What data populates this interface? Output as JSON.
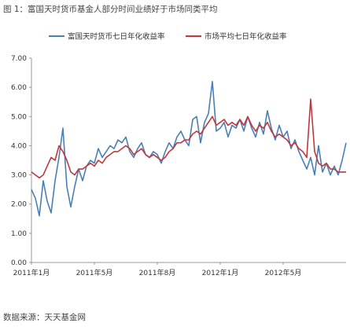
{
  "title": "图 1：富国天时货币基金人部分时间业绩好于市场同类平均",
  "source": "数据来源：天天基金网",
  "colors": {
    "series_a": "#4a7fb5",
    "series_b": "#c0373c",
    "axis": "#999999"
  },
  "chart_data": {
    "type": "line",
    "title": "图 1：富国天时货币基金人部分时间业绩好于市场同类平均",
    "xlabel": "",
    "ylabel": "",
    "ylim": [
      0,
      7
    ],
    "yticks": [
      "0.00",
      "1.00",
      "2.00",
      "3.00",
      "4.00",
      "5.00",
      "6.00",
      "7.00"
    ],
    "xlim": [
      0,
      80
    ],
    "xticks": [
      {
        "x": 0,
        "label": "2011年1月"
      },
      {
        "x": 16,
        "label": "2011年5月"
      },
      {
        "x": 32,
        "label": "2011年8月"
      },
      {
        "x": 48,
        "label": "2012年1月"
      },
      {
        "x": 64,
        "label": "2012年5月"
      }
    ],
    "grid": false,
    "legend": "top",
    "series": [
      {
        "name": "富国天时货币七日年化收益率",
        "color": "#4a7fb5",
        "points": [
          [
            0,
            2.5
          ],
          [
            1,
            2.2
          ],
          [
            2,
            1.6
          ],
          [
            3,
            2.8
          ],
          [
            4,
            2.1
          ],
          [
            5,
            1.7
          ],
          [
            6,
            2.8
          ],
          [
            7,
            3.6
          ],
          [
            8,
            4.6
          ],
          [
            9,
            2.6
          ],
          [
            10,
            1.9
          ],
          [
            11,
            2.6
          ],
          [
            12,
            3.2
          ],
          [
            13,
            2.8
          ],
          [
            14,
            3.3
          ],
          [
            15,
            3.5
          ],
          [
            16,
            3.4
          ],
          [
            17,
            3.9
          ],
          [
            18,
            3.6
          ],
          [
            19,
            3.8
          ],
          [
            20,
            4.0
          ],
          [
            21,
            3.9
          ],
          [
            22,
            4.2
          ],
          [
            23,
            4.1
          ],
          [
            24,
            4.3
          ],
          [
            25,
            3.8
          ],
          [
            26,
            3.6
          ],
          [
            27,
            3.9
          ],
          [
            28,
            4.1
          ],
          [
            29,
            3.7
          ],
          [
            30,
            3.6
          ],
          [
            31,
            3.8
          ],
          [
            32,
            3.7
          ],
          [
            33,
            3.4
          ],
          [
            34,
            3.8
          ],
          [
            35,
            4.1
          ],
          [
            36,
            3.9
          ],
          [
            37,
            4.3
          ],
          [
            38,
            4.5
          ],
          [
            39,
            4.2
          ],
          [
            40,
            4.0
          ],
          [
            41,
            4.9
          ],
          [
            42,
            5.0
          ],
          [
            43,
            4.1
          ],
          [
            44,
            4.8
          ],
          [
            45,
            5.1
          ],
          [
            46,
            6.2
          ],
          [
            47,
            4.5
          ],
          [
            48,
            4.6
          ],
          [
            49,
            4.8
          ],
          [
            50,
            4.3
          ],
          [
            51,
            4.7
          ],
          [
            52,
            4.6
          ],
          [
            53,
            4.9
          ],
          [
            54,
            4.5
          ],
          [
            55,
            5.0
          ],
          [
            56,
            4.6
          ],
          [
            57,
            4.3
          ],
          [
            58,
            4.8
          ],
          [
            59,
            4.4
          ],
          [
            60,
            5.2
          ],
          [
            61,
            4.6
          ],
          [
            62,
            4.2
          ],
          [
            63,
            4.7
          ],
          [
            64,
            4.3
          ],
          [
            65,
            4.5
          ],
          [
            66,
            3.9
          ],
          [
            67,
            4.2
          ],
          [
            68,
            3.8
          ],
          [
            69,
            3.5
          ],
          [
            70,
            3.2
          ],
          [
            71,
            3.6
          ],
          [
            72,
            3.0
          ],
          [
            73,
            4.0
          ],
          [
            74,
            3.1
          ],
          [
            75,
            3.4
          ],
          [
            76,
            3.0
          ],
          [
            77,
            3.3
          ],
          [
            78,
            3.0
          ],
          [
            79,
            3.5
          ],
          [
            80,
            4.1
          ]
        ]
      },
      {
        "name": "市场平均七日年化收益率",
        "color": "#c0373c",
        "points": [
          [
            0,
            3.1
          ],
          [
            1,
            3.0
          ],
          [
            2,
            2.9
          ],
          [
            3,
            3.0
          ],
          [
            4,
            3.3
          ],
          [
            5,
            3.6
          ],
          [
            6,
            3.5
          ],
          [
            7,
            4.0
          ],
          [
            8,
            3.8
          ],
          [
            9,
            3.5
          ],
          [
            10,
            3.1
          ],
          [
            11,
            3.0
          ],
          [
            12,
            3.2
          ],
          [
            13,
            3.2
          ],
          [
            14,
            3.3
          ],
          [
            15,
            3.4
          ],
          [
            16,
            3.3
          ],
          [
            17,
            3.5
          ],
          [
            18,
            3.4
          ],
          [
            19,
            3.6
          ],
          [
            20,
            3.7
          ],
          [
            21,
            3.8
          ],
          [
            22,
            3.8
          ],
          [
            23,
            3.9
          ],
          [
            24,
            4.0
          ],
          [
            25,
            3.9
          ],
          [
            26,
            3.7
          ],
          [
            27,
            3.8
          ],
          [
            28,
            3.9
          ],
          [
            29,
            3.7
          ],
          [
            30,
            3.6
          ],
          [
            31,
            3.7
          ],
          [
            32,
            3.6
          ],
          [
            33,
            3.5
          ],
          [
            34,
            3.6
          ],
          [
            35,
            3.8
          ],
          [
            36,
            3.9
          ],
          [
            37,
            4.1
          ],
          [
            38,
            4.1
          ],
          [
            39,
            4.2
          ],
          [
            40,
            4.2
          ],
          [
            41,
            4.4
          ],
          [
            42,
            4.5
          ],
          [
            43,
            4.4
          ],
          [
            44,
            4.6
          ],
          [
            45,
            4.8
          ],
          [
            46,
            5.0
          ],
          [
            47,
            4.7
          ],
          [
            48,
            4.8
          ],
          [
            49,
            4.9
          ],
          [
            50,
            4.7
          ],
          [
            51,
            4.8
          ],
          [
            52,
            4.7
          ],
          [
            53,
            4.9
          ],
          [
            54,
            4.7
          ],
          [
            55,
            5.0
          ],
          [
            56,
            4.7
          ],
          [
            57,
            4.5
          ],
          [
            58,
            4.7
          ],
          [
            59,
            4.6
          ],
          [
            60,
            4.8
          ],
          [
            61,
            4.5
          ],
          [
            62,
            4.3
          ],
          [
            63,
            4.4
          ],
          [
            64,
            4.3
          ],
          [
            65,
            4.2
          ],
          [
            66,
            4.0
          ],
          [
            67,
            4.1
          ],
          [
            68,
            3.9
          ],
          [
            69,
            3.8
          ],
          [
            70,
            3.6
          ],
          [
            71,
            5.6
          ],
          [
            72,
            3.8
          ],
          [
            73,
            3.4
          ],
          [
            74,
            3.3
          ],
          [
            75,
            3.4
          ],
          [
            76,
            3.2
          ],
          [
            77,
            3.2
          ],
          [
            78,
            3.1
          ],
          [
            79,
            3.1
          ],
          [
            80,
            3.1
          ]
        ]
      }
    ]
  }
}
